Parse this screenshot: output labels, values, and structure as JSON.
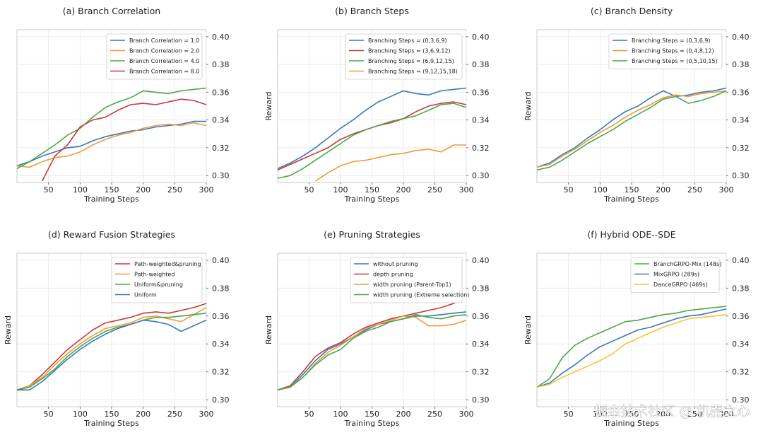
{
  "watermark": "掘金技术社区 @ 机器之心",
  "chart_data": [
    {
      "type": "line",
      "title": "(a) Branch Correlation",
      "xlabel": "Training Steps",
      "ylabel": "",
      "xlim": [
        0,
        300
      ],
      "ylim": [
        0.295,
        0.405
      ],
      "xticks": [
        50,
        100,
        150,
        200,
        250,
        300
      ],
      "yticks": [
        0.3,
        0.32,
        0.34,
        0.36,
        0.38,
        0.4
      ],
      "legend_position": "top-right",
      "grid": true,
      "series": [
        {
          "name": "Branch Correlation = 1.0",
          "color": "#3a78b8",
          "x": [
            0,
            20,
            40,
            60,
            80,
            100,
            120,
            140,
            160,
            180,
            200,
            220,
            240,
            260,
            280,
            300
          ],
          "y": [
            0.307,
            0.31,
            0.314,
            0.317,
            0.32,
            0.321,
            0.325,
            0.328,
            0.33,
            0.332,
            0.333,
            0.335,
            0.336,
            0.337,
            0.339,
            0.339
          ]
        },
        {
          "name": "Branch Correlation = 2.0",
          "color": "#f09a40",
          "x": [
            0,
            20,
            40,
            60,
            80,
            100,
            120,
            140,
            160,
            180,
            200,
            220,
            240,
            260,
            280,
            300
          ],
          "y": [
            0.307,
            0.306,
            0.31,
            0.313,
            0.314,
            0.317,
            0.322,
            0.326,
            0.329,
            0.331,
            0.334,
            0.336,
            0.337,
            0.336,
            0.338,
            0.336
          ]
        },
        {
          "name": "Branch Correlation = 4.0",
          "color": "#4aa84a",
          "x": [
            0,
            20,
            40,
            60,
            80,
            100,
            120,
            140,
            160,
            180,
            200,
            220,
            240,
            260,
            280,
            300
          ],
          "y": [
            0.305,
            0.31,
            0.316,
            0.322,
            0.329,
            0.334,
            0.342,
            0.349,
            0.353,
            0.356,
            0.361,
            0.36,
            0.359,
            0.361,
            0.362,
            0.363
          ]
        },
        {
          "name": "Branch Correlation = 8.0",
          "color": "#c63a3a",
          "x": [
            40,
            50,
            60,
            80,
            100,
            120,
            140,
            160,
            180,
            200,
            220,
            240,
            260,
            280,
            300
          ],
          "y": [
            0.296,
            0.305,
            0.314,
            0.322,
            0.335,
            0.34,
            0.342,
            0.347,
            0.351,
            0.352,
            0.351,
            0.353,
            0.355,
            0.354,
            0.351
          ]
        }
      ]
    },
    {
      "type": "line",
      "title": "(b) Branch Steps",
      "xlabel": "Training Steps",
      "ylabel": "Reward",
      "xlim": [
        0,
        300
      ],
      "ylim": [
        0.295,
        0.405
      ],
      "xticks": [
        50,
        100,
        150,
        200,
        250,
        300
      ],
      "yticks": [
        0.3,
        0.32,
        0.34,
        0.36,
        0.38,
        0.4
      ],
      "legend_position": "top-right",
      "grid": true,
      "series": [
        {
          "name": "Branching Steps = (0,3,6,9)",
          "color": "#3a78b8",
          "x": [
            0,
            20,
            40,
            60,
            80,
            100,
            120,
            140,
            160,
            180,
            200,
            220,
            240,
            260,
            280,
            300
          ],
          "y": [
            0.305,
            0.309,
            0.314,
            0.32,
            0.327,
            0.334,
            0.34,
            0.347,
            0.353,
            0.357,
            0.361,
            0.359,
            0.358,
            0.361,
            0.362,
            0.363
          ]
        },
        {
          "name": "Branching Steps = (3,6,9,12)",
          "color": "#c63a3a",
          "x": [
            0,
            20,
            40,
            60,
            80,
            100,
            120,
            140,
            160,
            180,
            200,
            220,
            240,
            260,
            280,
            300
          ],
          "y": [
            0.304,
            0.308,
            0.312,
            0.316,
            0.32,
            0.326,
            0.33,
            0.333,
            0.336,
            0.338,
            0.341,
            0.346,
            0.35,
            0.352,
            0.353,
            0.351
          ]
        },
        {
          "name": "Branching Steps = (6,9,12,15)",
          "color": "#4aa84a",
          "x": [
            0,
            20,
            40,
            60,
            80,
            100,
            120,
            140,
            160,
            180,
            200,
            220,
            240,
            260,
            280,
            300
          ],
          "y": [
            0.298,
            0.3,
            0.305,
            0.311,
            0.317,
            0.323,
            0.329,
            0.333,
            0.336,
            0.339,
            0.341,
            0.343,
            0.347,
            0.351,
            0.352,
            0.349
          ]
        },
        {
          "name": "Branching Steps = (9,12,15,18)",
          "color": "#f09a40",
          "x": [
            60,
            80,
            100,
            120,
            140,
            160,
            180,
            200,
            220,
            240,
            260,
            280,
            300
          ],
          "y": [
            0.296,
            0.302,
            0.307,
            0.31,
            0.311,
            0.313,
            0.315,
            0.316,
            0.318,
            0.319,
            0.317,
            0.322,
            0.322
          ]
        }
      ]
    },
    {
      "type": "line",
      "title": "(c) Branch Density",
      "xlabel": "Training Steps",
      "ylabel": "Reward",
      "xlim": [
        0,
        300
      ],
      "ylim": [
        0.295,
        0.405
      ],
      "xticks": [
        50,
        100,
        150,
        200,
        250,
        300
      ],
      "yticks": [
        0.3,
        0.32,
        0.34,
        0.36,
        0.38,
        0.4
      ],
      "legend_position": "top-right",
      "grid": true,
      "series": [
        {
          "name": "Branching Steps = (0,3,6,9)",
          "color": "#3a78b8",
          "x": [
            0,
            20,
            40,
            60,
            80,
            100,
            120,
            140,
            160,
            180,
            200,
            220,
            240,
            260,
            280,
            300
          ],
          "y": [
            0.306,
            0.309,
            0.315,
            0.32,
            0.327,
            0.333,
            0.34,
            0.346,
            0.35,
            0.356,
            0.361,
            0.357,
            0.358,
            0.36,
            0.361,
            0.363
          ]
        },
        {
          "name": "Branching Steps = (0,4,8,12)",
          "color": "#f09a40",
          "x": [
            0,
            20,
            40,
            60,
            80,
            100,
            120,
            140,
            160,
            180,
            200,
            220,
            240,
            260,
            280,
            300
          ],
          "y": [
            0.306,
            0.308,
            0.314,
            0.319,
            0.325,
            0.331,
            0.336,
            0.342,
            0.347,
            0.351,
            0.356,
            0.358,
            0.357,
            0.359,
            0.36,
            0.361
          ]
        },
        {
          "name": "Branching Steps = (0,5,10,15)",
          "color": "#4aa84a",
          "x": [
            0,
            20,
            40,
            60,
            80,
            100,
            120,
            140,
            160,
            180,
            200,
            220,
            240,
            260,
            280,
            300
          ],
          "y": [
            0.304,
            0.306,
            0.311,
            0.317,
            0.323,
            0.328,
            0.333,
            0.339,
            0.344,
            0.349,
            0.355,
            0.357,
            0.352,
            0.354,
            0.357,
            0.361
          ]
        }
      ]
    },
    {
      "type": "line",
      "title": "(d) Reward Fusion Strategies",
      "xlabel": "Training Steps",
      "ylabel": "Reward",
      "xlim": [
        0,
        300
      ],
      "ylim": [
        0.295,
        0.405
      ],
      "xticks": [
        50,
        100,
        150,
        200,
        250,
        300
      ],
      "yticks": [
        0.3,
        0.32,
        0.34,
        0.36,
        0.38,
        0.4
      ],
      "legend_position": "top-right",
      "grid": true,
      "series": [
        {
          "name": "Path-weighted&pruning",
          "color": "#c63a3a",
          "x": [
            0,
            20,
            40,
            60,
            80,
            100,
            120,
            140,
            160,
            180,
            200,
            220,
            240,
            260,
            280,
            300
          ],
          "y": [
            0.307,
            0.31,
            0.318,
            0.327,
            0.336,
            0.343,
            0.35,
            0.355,
            0.357,
            0.359,
            0.362,
            0.363,
            0.362,
            0.364,
            0.366,
            0.369
          ]
        },
        {
          "name": "Path-weighted",
          "color": "#f09a40",
          "x": [
            0,
            20,
            40,
            60,
            80,
            100,
            120,
            140,
            160,
            180,
            200,
            220,
            240,
            260,
            280,
            300
          ],
          "y": [
            0.307,
            0.31,
            0.316,
            0.325,
            0.333,
            0.34,
            0.346,
            0.351,
            0.353,
            0.355,
            0.359,
            0.36,
            0.358,
            0.356,
            0.361,
            0.366
          ]
        },
        {
          "name": "Uniform&pruning",
          "color": "#4aa84a",
          "x": [
            0,
            20,
            40,
            60,
            80,
            100,
            120,
            140,
            160,
            180,
            200,
            220,
            240,
            260,
            280,
            300
          ],
          "y": [
            0.307,
            0.309,
            0.315,
            0.322,
            0.331,
            0.338,
            0.344,
            0.349,
            0.352,
            0.354,
            0.357,
            0.359,
            0.359,
            0.36,
            0.361,
            0.362
          ]
        },
        {
          "name": "Uniform",
          "color": "#3a78b8",
          "x": [
            0,
            20,
            40,
            60,
            80,
            100,
            120,
            140,
            160,
            180,
            200,
            220,
            240,
            260,
            280,
            300
          ],
          "y": [
            0.307,
            0.307,
            0.313,
            0.321,
            0.329,
            0.336,
            0.342,
            0.347,
            0.351,
            0.354,
            0.357,
            0.356,
            0.354,
            0.349,
            0.353,
            0.357
          ]
        }
      ]
    },
    {
      "type": "line",
      "title": "(e) Pruning Strategies",
      "xlabel": "Training Steps",
      "ylabel": "Reward",
      "xlim": [
        0,
        300
      ],
      "ylim": [
        0.295,
        0.405
      ],
      "xticks": [
        50,
        100,
        150,
        200,
        250,
        300
      ],
      "yticks": [
        0.3,
        0.32,
        0.34,
        0.36,
        0.38,
        0.4
      ],
      "legend_position": "top-right",
      "grid": true,
      "series": [
        {
          "name": "without pruning",
          "color": "#3a78b8",
          "x": [
            0,
            20,
            40,
            60,
            80,
            100,
            120,
            140,
            160,
            180,
            200,
            220,
            240,
            260,
            280,
            300
          ],
          "y": [
            0.307,
            0.309,
            0.318,
            0.328,
            0.336,
            0.34,
            0.345,
            0.35,
            0.354,
            0.356,
            0.358,
            0.36,
            0.36,
            0.361,
            0.362,
            0.363
          ]
        },
        {
          "name": "depth pruning",
          "color": "#c63a3a",
          "x": [
            0,
            20,
            40,
            60,
            80,
            100,
            120,
            140,
            160,
            180,
            200,
            220,
            240,
            260,
            280,
            290
          ],
          "y": [
            0.307,
            0.31,
            0.32,
            0.331,
            0.337,
            0.341,
            0.347,
            0.352,
            0.355,
            0.358,
            0.36,
            0.362,
            0.364,
            0.366,
            0.369,
            0.372
          ]
        },
        {
          "name": "width pruning (Parent-Top1)",
          "color": "#f09a40",
          "x": [
            0,
            20,
            40,
            60,
            80,
            100,
            120,
            140,
            160,
            180,
            200,
            220,
            240,
            260,
            280,
            300
          ],
          "y": [
            0.307,
            0.309,
            0.316,
            0.326,
            0.334,
            0.339,
            0.345,
            0.351,
            0.354,
            0.357,
            0.36,
            0.359,
            0.353,
            0.353,
            0.354,
            0.357
          ]
        },
        {
          "name": "width pruning (Extreme selection)",
          "color": "#4aa84a",
          "x": [
            0,
            20,
            40,
            60,
            80,
            100,
            120,
            140,
            160,
            180,
            200,
            220,
            240,
            260,
            280,
            300
          ],
          "y": [
            0.307,
            0.309,
            0.316,
            0.325,
            0.332,
            0.336,
            0.344,
            0.349,
            0.352,
            0.356,
            0.358,
            0.361,
            0.359,
            0.358,
            0.36,
            0.361
          ]
        }
      ]
    },
    {
      "type": "line",
      "title": "(f) Hybrid ODE--SDE",
      "xlabel": "Training Steps",
      "ylabel": "Reward",
      "xlim": [
        0,
        300
      ],
      "ylim": [
        0.295,
        0.405
      ],
      "xticks": [
        50,
        100,
        150,
        200,
        250,
        300
      ],
      "yticks": [
        0.3,
        0.32,
        0.34,
        0.36,
        0.38,
        0.4
      ],
      "legend_position": "top-left",
      "grid": true,
      "series": [
        {
          "name": "BranchGRPO-Mix (148s)",
          "color": "#4aa84a",
          "x": [
            0,
            20,
            40,
            60,
            80,
            100,
            120,
            140,
            160,
            180,
            200,
            220,
            240,
            260,
            280,
            300
          ],
          "y": [
            0.309,
            0.315,
            0.33,
            0.339,
            0.344,
            0.348,
            0.352,
            0.356,
            0.357,
            0.359,
            0.361,
            0.362,
            0.364,
            0.365,
            0.366,
            0.367
          ]
        },
        {
          "name": "MixGRPO (289s)",
          "color": "#3a78b8",
          "x": [
            0,
            20,
            40,
            60,
            80,
            100,
            120,
            140,
            160,
            180,
            200,
            220,
            240,
            260,
            280,
            300
          ],
          "y": [
            0.309,
            0.312,
            0.319,
            0.325,
            0.332,
            0.338,
            0.342,
            0.346,
            0.35,
            0.352,
            0.355,
            0.358,
            0.36,
            0.361,
            0.363,
            0.365
          ]
        },
        {
          "name": "DanceGRPO (469s)",
          "color": "#f2c53a",
          "x": [
            0,
            20,
            40,
            60,
            80,
            100,
            120,
            140,
            160,
            180,
            200,
            220,
            240,
            260,
            280,
            300
          ],
          "y": [
            0.309,
            0.311,
            0.316,
            0.32,
            0.324,
            0.328,
            0.333,
            0.34,
            0.344,
            0.348,
            0.352,
            0.355,
            0.358,
            0.359,
            0.36,
            0.361
          ]
        }
      ]
    }
  ]
}
